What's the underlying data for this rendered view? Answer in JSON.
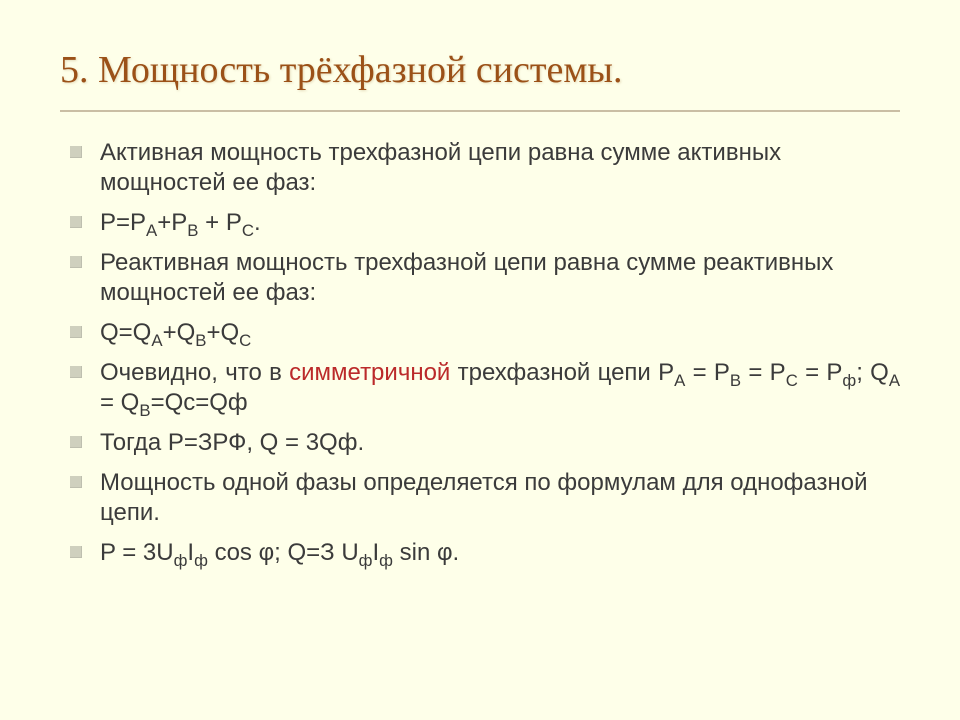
{
  "slide": {
    "title": "5. Мощность трёхфазной системы.",
    "title_color": "#9b5118",
    "background": "#feffe9",
    "bullet_color": "#cfd0be",
    "rule_color": "#9e886b",
    "text_color": "#3b3b3b",
    "highlight_color": "#bb2a2a",
    "title_fontsize_pt": 28,
    "body_fontsize_pt": 18,
    "items": [
      {
        "html": "Активная мощность трехфазной цепи равна сумме активных мощностей ее фаз:",
        "justify": false
      },
      {
        "html": "P=P<sub>А</sub>+P<sub>В</sub> + P<sub>С</sub>.",
        "justify": false
      },
      {
        "html": "Реактивная мощность трехфазной цепи равна сумме реактивных мощностей ее фаз:",
        "justify": false
      },
      {
        "html": "Q=Q<sub>А</sub>+Q<sub>В</sub>+Q<sub>С</sub>",
        "justify": false
      },
      {
        "html": "Очевидно, что в <span class=\"red\">симметричной</span> трехфазной цепи P<sub>А</sub> = P<sub>В</sub> = P<sub>С</sub> = P<sub>ф</sub>;  Q<sub>А</sub> = Q<sub>В</sub>=Qс=Qф",
        "justify": true
      },
      {
        "html": "Тогда P=ЗРФ, Q = 3Qф.",
        "justify": false
      },
      {
        "html": "Мощность одной фазы определяется по формулам для однофазной цепи.",
        "justify": false
      },
      {
        "html": "P = 3U<sub>ф</sub>I<sub>ф</sub> cos φ;  Q=З U<sub>ф</sub>I<sub>ф</sub> sin φ.",
        "justify": false
      }
    ]
  }
}
